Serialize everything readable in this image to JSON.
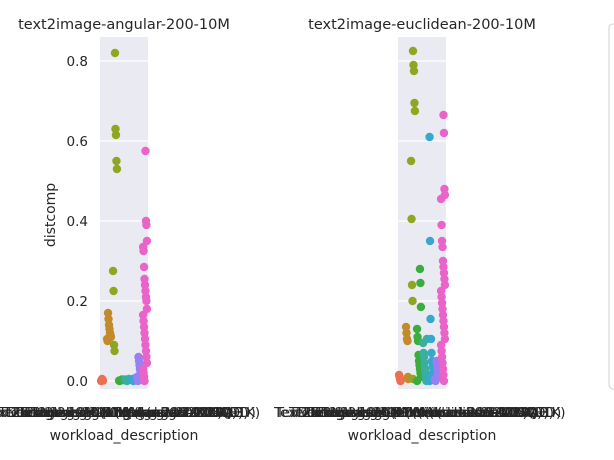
{
  "ylabel": "distcomp",
  "legend": {
    "placement": "right",
    "entries": []
  },
  "palette": [
    "#ec6f52",
    "#c18a2b",
    "#8ea622",
    "#3aad3f",
    "#3aaf9e",
    "#36a8cc",
    "#9a7ff3",
    "#ea63c9"
  ],
  "chart_data": [
    {
      "type": "scatter",
      "title": "text2image-angular-200-10M",
      "xlabel": "workload_description",
      "ylabel": "distcomp",
      "ylim": [
        -0.02,
        0.86
      ],
      "yticks": [
        0.0,
        0.2,
        0.4,
        0.6,
        0.8
      ],
      "grid": true,
      "x_tick_labels": [
        "Text2Image-10M (angular-200-10K)",
        "Text2Image-10M (angular-200-100K)",
        "Text2Image-10M (angular-200-1M)",
        "Text2Image-10M (angular-200-SQ)",
        "Text2Image-10M (angular-200-QE)",
        "Text2Image-10M (angular-200-AB)",
        "Text2Image-10M (angular-200-DD)",
        "Text2Image-10M (angular-200-1K)"
      ],
      "series": [
        {
          "values": [
            0.0,
            0.002,
            0.005,
            0.003,
            0.001
          ]
        },
        {
          "values": [
            0.17,
            0.155,
            0.14,
            0.13,
            0.12,
            0.115,
            0.11,
            0.105,
            0.1
          ]
        },
        {
          "values": [
            0.82,
            0.63,
            0.615,
            0.55,
            0.53,
            0.275,
            0.225,
            0.09,
            0.075
          ]
        },
        {
          "values": [
            0.004,
            0.003,
            0.002,
            0.001,
            0.0
          ]
        },
        {
          "values": [
            0.005,
            0.004,
            0.003,
            0.002,
            0.001,
            0.0
          ]
        },
        {
          "values": [
            0.004,
            0.003,
            0.002,
            0.001,
            0.0,
            0.006
          ]
        },
        {
          "values": [
            0.06,
            0.05,
            0.04,
            0.03,
            0.02,
            0.015,
            0.01,
            0.005,
            0.0
          ]
        },
        {
          "values": [
            0.575,
            0.4,
            0.39,
            0.35,
            0.335,
            0.325,
            0.285,
            0.255,
            0.24,
            0.225,
            0.21,
            0.2,
            0.18,
            0.165,
            0.15,
            0.135,
            0.12,
            0.105,
            0.09,
            0.075,
            0.06,
            0.045,
            0.03,
            0.02,
            0.01,
            0.0
          ]
        }
      ]
    },
    {
      "type": "scatter",
      "title": "text2image-euclidean-200-10M",
      "xlabel": "workload_description",
      "ylabel": "",
      "ylim": [
        -0.02,
        0.86
      ],
      "yticks": [
        0.0,
        0.2,
        0.4,
        0.6,
        0.8
      ],
      "grid": true,
      "x_tick_labels": [
        "Text2Image-10M (euclidean-200-10K)",
        "Text2Image-10M (euclidean-200-100K)",
        "Text2Image-10M (euclidean-200-1M)",
        "Text2Image-10M (euclidean-200-SQ)",
        "Text2Image-10M (euclidean-200-QE)",
        "Text2Image-10M (euclidean-200-AB)",
        "Text2Image-10M (euclidean-200-DD)",
        "Text2Image-10M (euclidean-200-1K)"
      ],
      "series": [
        {
          "values": [
            0.015,
            0.01,
            0.005,
            0.0,
            0.002
          ]
        },
        {
          "values": [
            0.135,
            0.12,
            0.105,
            0.1,
            0.01,
            0.005
          ]
        },
        {
          "values": [
            0.825,
            0.79,
            0.775,
            0.695,
            0.675,
            0.55,
            0.405,
            0.24,
            0.2,
            0.005
          ]
        },
        {
          "values": [
            0.28,
            0.245,
            0.185,
            0.13,
            0.11,
            0.1,
            0.065,
            0.05,
            0.04,
            0.03,
            0.02,
            0.01,
            0.0
          ]
        },
        {
          "values": [
            0.105,
            0.095,
            0.07,
            0.06,
            0.045,
            0.03,
            0.02,
            0.01,
            0.0
          ]
        },
        {
          "values": [
            0.61,
            0.35,
            0.155,
            0.105,
            0.07,
            0.05,
            0.035,
            0.02,
            0.01,
            0.0
          ]
        },
        {
          "values": [
            0.05,
            0.04,
            0.03,
            0.02,
            0.015,
            0.01,
            0.005,
            0.0
          ]
        },
        {
          "values": [
            0.665,
            0.62,
            0.48,
            0.465,
            0.455,
            0.39,
            0.35,
            0.335,
            0.3,
            0.285,
            0.27,
            0.255,
            0.24,
            0.225,
            0.21,
            0.195,
            0.18,
            0.165,
            0.15,
            0.135,
            0.12,
            0.105,
            0.09,
            0.075,
            0.06,
            0.045,
            0.03,
            0.015,
            0.0
          ]
        }
      ]
    }
  ]
}
